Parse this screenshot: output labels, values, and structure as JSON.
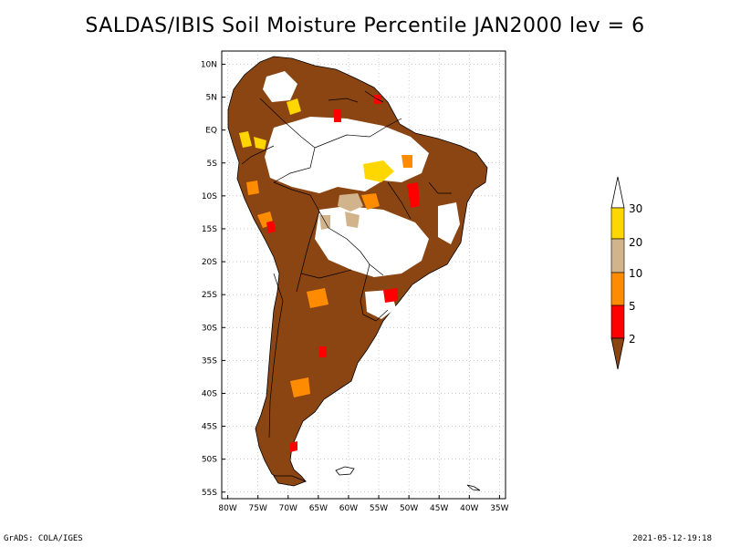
{
  "title": "SALDAS/IBIS Soil Moisture Percentile JAN2000 lev = 6",
  "axes": {
    "lat_labels": [
      "10N",
      "5N",
      "EQ",
      "5S",
      "10S",
      "15S",
      "20S",
      "25S",
      "30S",
      "35S",
      "40S",
      "45S",
      "50S",
      "55S"
    ],
    "lon_labels": [
      "80W",
      "75W",
      "70W",
      "65W",
      "60W",
      "55W",
      "50W",
      "45W",
      "40W",
      "35W"
    ],
    "lat_range": [
      -56,
      12
    ],
    "lon_range": [
      -81,
      -34
    ]
  },
  "legend": {
    "placement": "right",
    "levels": [
      "30",
      "20",
      "10",
      "5",
      "2"
    ],
    "colors": {
      "above_30": "#ffffff",
      "20_30": "#ffd700",
      "10_20": "#d2b48c",
      "5_10": "#ff8c00",
      "2_5": "#ff0000",
      "below_2": "#8b4513"
    }
  },
  "footer": {
    "left": "GrADS: COLA/IGES",
    "right": "2021-05-12-19:18"
  }
}
